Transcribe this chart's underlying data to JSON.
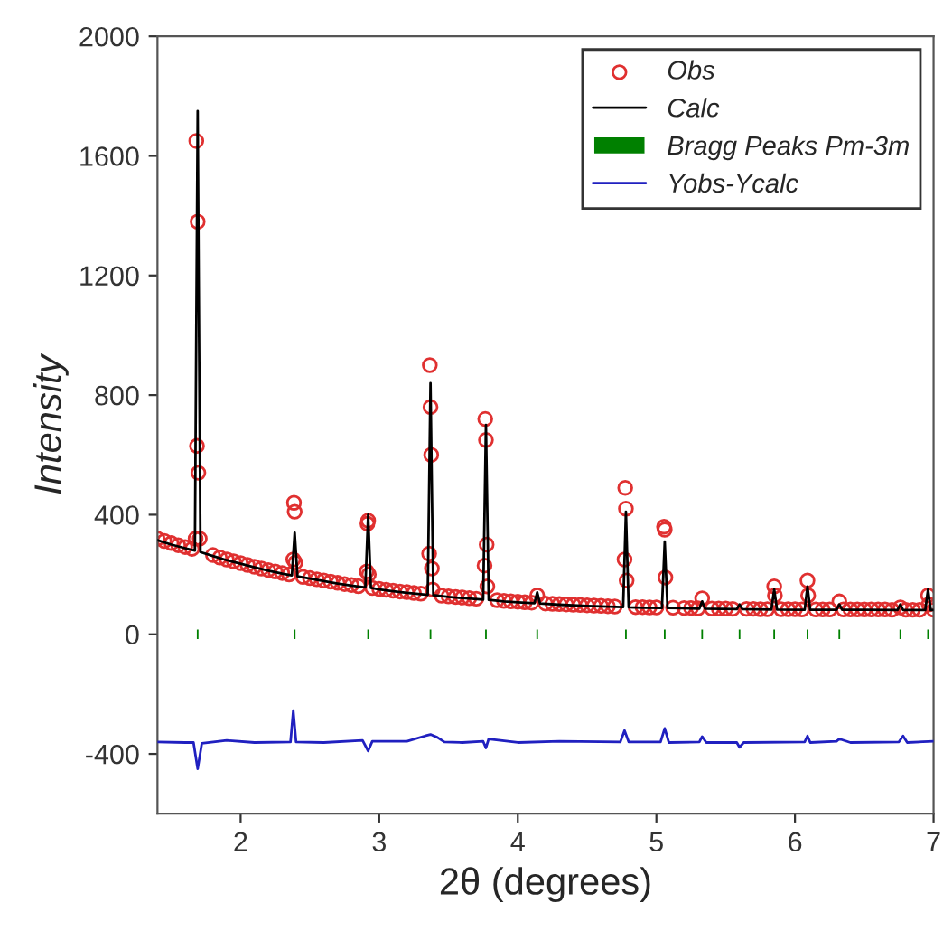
{
  "chart_data": {
    "type": "scatter",
    "xlabel": "2θ (degrees)",
    "ylabel": "Intensity",
    "xlim": [
      1.4,
      7
    ],
    "xticks": [
      2,
      3,
      4,
      5,
      6,
      7
    ],
    "ylim": [
      -600,
      2000
    ],
    "yticks": [
      -400,
      0,
      400,
      800,
      1200,
      1600,
      2000
    ],
    "grid": false,
    "legend": "top right",
    "series": [
      {
        "name": "Obs",
        "marker": "circle",
        "color": "#e03030",
        "x": [
          1.4,
          1.45,
          1.5,
          1.55,
          1.6,
          1.65,
          1.8,
          1.85,
          1.9,
          1.95,
          2.0,
          2.05,
          2.1,
          2.15,
          2.2,
          2.25,
          2.3,
          2.35,
          2.45,
          2.5,
          2.55,
          2.6,
          2.65,
          2.7,
          2.75,
          2.8,
          2.85,
          2.95,
          3.0,
          3.05,
          3.1,
          3.15,
          3.2,
          3.25,
          3.3,
          3.45,
          3.5,
          3.55,
          3.6,
          3.65,
          3.7,
          3.85,
          3.9,
          3.95,
          4.0,
          4.05,
          4.1,
          4.2,
          4.25,
          4.3,
          4.35,
          4.4,
          4.45,
          4.5,
          4.55,
          4.6,
          4.65,
          4.7,
          4.85,
          4.9,
          4.95,
          5.0,
          5.12,
          5.2,
          5.25,
          5.3,
          5.4,
          5.45,
          5.5,
          5.55,
          5.65,
          5.7,
          5.75,
          5.8,
          5.9,
          5.95,
          6.0,
          6.05,
          6.15,
          6.2,
          6.25,
          6.35,
          6.4,
          6.45,
          6.5,
          6.55,
          6.6,
          6.65,
          6.7,
          6.8,
          6.85,
          6.9,
          7.0,
          1.68,
          1.69,
          1.685,
          1.695,
          1.675,
          1.705,
          2.385,
          2.39,
          2.38,
          2.395,
          2.915,
          2.92,
          2.91,
          2.925,
          3.365,
          3.37,
          3.375,
          3.36,
          3.38,
          3.385,
          3.765,
          3.77,
          3.775,
          3.76,
          3.78,
          4.14,
          4.775,
          4.78,
          4.77,
          4.785,
          5.055,
          5.06,
          5.065,
          5.33,
          5.85,
          5.855,
          6.09,
          6.095,
          6.32,
          6.76,
          6.96,
          6.965
        ],
        "values": [
          320,
          312,
          305,
          298,
          292,
          286,
          265,
          257,
          250,
          244,
          238,
          232,
          226,
          220,
          215,
          210,
          205,
          200,
          192,
          188,
          184,
          180,
          176,
          172,
          168,
          165,
          161,
          155,
          152,
          149,
          146,
          143,
          141,
          138,
          136,
          129,
          127,
          125,
          123,
          121,
          119,
          114,
          112,
          110,
          109,
          107,
          106,
          103,
          102,
          101,
          100,
          99,
          98,
          97,
          96,
          95,
          94,
          93,
          91,
          91,
          90,
          90,
          89,
          88,
          88,
          87,
          86,
          86,
          86,
          85,
          85,
          85,
          84,
          84,
          84,
          84,
          84,
          83,
          83,
          83,
          83,
          83,
          83,
          83,
          83,
          83,
          83,
          83,
          82,
          82,
          82,
          82,
          82,
          1650,
          1380,
          630,
          540,
          320,
          320,
          440,
          410,
          250,
          240,
          370,
          380,
          210,
          200,
          900,
          760,
          600,
          270,
          220,
          150,
          720,
          650,
          300,
          230,
          160,
          130,
          490,
          420,
          250,
          180,
          360,
          350,
          190,
          120,
          160,
          130,
          180,
          130,
          110,
          90,
          130,
          100
        ]
      },
      {
        "name": "Calc",
        "type": "line",
        "color": "#000000",
        "x": [
          1.4,
          1.5,
          1.6,
          1.67,
          1.69,
          1.71,
          1.8,
          1.9,
          2.0,
          2.1,
          2.2,
          2.3,
          2.37,
          2.39,
          2.41,
          2.5,
          2.6,
          2.7,
          2.8,
          2.9,
          2.92,
          2.94,
          3.0,
          3.1,
          3.2,
          3.3,
          3.35,
          3.37,
          3.39,
          3.5,
          3.6,
          3.75,
          3.77,
          3.79,
          3.9,
          4.0,
          4.12,
          4.14,
          4.16,
          4.3,
          4.5,
          4.76,
          4.78,
          4.8,
          4.9,
          5.04,
          5.06,
          5.08,
          5.2,
          5.31,
          5.33,
          5.35,
          5.58,
          5.6,
          5.62,
          5.83,
          5.85,
          5.87,
          6.07,
          6.09,
          6.11,
          6.3,
          6.32,
          6.34,
          6.5,
          6.74,
          6.76,
          6.78,
          6.94,
          6.96,
          6.98,
          7.0
        ],
        "values": [
          315,
          300,
          288,
          280,
          1750,
          275,
          262,
          248,
          236,
          224,
          213,
          203,
          197,
          340,
          194,
          186,
          178,
          170,
          163,
          157,
          400,
          155,
          150,
          144,
          139,
          134,
          132,
          840,
          131,
          125,
          121,
          116,
          700,
          115,
          110,
          107,
          104,
          140,
          103,
          99,
          95,
          91,
          410,
          90,
          89,
          88,
          310,
          88,
          87,
          86,
          110,
          86,
          84,
          100,
          84,
          83,
          150,
          83,
          82,
          160,
          82,
          82,
          100,
          82,
          82,
          81,
          100,
          81,
          81,
          150,
          81,
          81
        ]
      },
      {
        "name": "Bragg Peaks Pm-3m",
        "type": "bar",
        "color": "#008000",
        "x": [
          1.69,
          2.39,
          2.92,
          3.37,
          3.77,
          4.14,
          4.78,
          5.06,
          5.33,
          5.6,
          5.85,
          6.09,
          6.32,
          6.76,
          6.96
        ],
        "base": [
          -20,
          -20,
          -20,
          -20,
          -20,
          -20,
          -20,
          -20,
          -20,
          -20,
          -20,
          -20,
          -20,
          -20,
          -20
        ],
        "values": [
          40,
          40,
          40,
          40,
          40,
          40,
          40,
          40,
          40,
          40,
          40,
          40,
          40,
          40,
          40
        ]
      },
      {
        "name": "Yobs-Ycalc",
        "type": "line",
        "color": "#2020c0",
        "x": [
          1.4,
          1.6,
          1.66,
          1.69,
          1.72,
          1.9,
          2.1,
          2.36,
          2.38,
          2.4,
          2.6,
          2.88,
          2.92,
          2.95,
          3.2,
          3.33,
          3.37,
          3.42,
          3.47,
          3.6,
          3.75,
          3.77,
          3.79,
          4.0,
          4.3,
          4.74,
          4.77,
          4.8,
          5.03,
          5.06,
          5.09,
          5.31,
          5.33,
          5.36,
          5.58,
          5.6,
          5.63,
          6.07,
          6.09,
          6.11,
          6.3,
          6.32,
          6.4,
          6.75,
          6.78,
          6.81,
          7.0
        ],
        "values": [
          -360,
          -362,
          -362,
          -450,
          -365,
          -355,
          -362,
          -360,
          -255,
          -360,
          -362,
          -355,
          -390,
          -358,
          -358,
          -340,
          -335,
          -345,
          -360,
          -362,
          -358,
          -380,
          -350,
          -362,
          -358,
          -360,
          -322,
          -360,
          -360,
          -315,
          -362,
          -360,
          -342,
          -362,
          -362,
          -378,
          -362,
          -360,
          -340,
          -362,
          -358,
          -350,
          -362,
          -360,
          -340,
          -362,
          -358
        ]
      }
    ]
  }
}
